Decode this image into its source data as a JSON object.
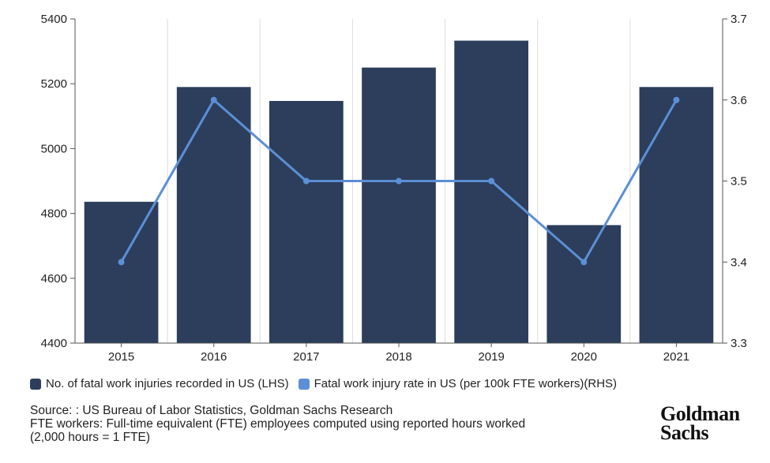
{
  "chart_data": {
    "type": "bar+line",
    "categories": [
      "2015",
      "2016",
      "2017",
      "2018",
      "2019",
      "2020",
      "2021"
    ],
    "series": [
      {
        "name": "No. of fatal work injuries recorded in US (LHS)",
        "type": "bar",
        "axis": "left",
        "color": "#2c3e5c",
        "values": [
          4836,
          5190,
          5147,
          5250,
          5333,
          4764,
          5190
        ]
      },
      {
        "name": "Fatal work injury rate in US (per 100k FTE workers)(RHS)",
        "type": "line",
        "axis": "right",
        "color": "#5b8fd6",
        "values": [
          3.4,
          3.6,
          3.5,
          3.5,
          3.5,
          3.4,
          3.6
        ]
      }
    ],
    "y_left": {
      "range": [
        4400,
        5400
      ],
      "ticks": [
        "4400",
        "4600",
        "4800",
        "5000",
        "5200",
        "5400"
      ]
    },
    "y_right": {
      "range": [
        3.3,
        3.7
      ],
      "ticks": [
        "3.3",
        "3.4",
        "3.5",
        "3.6",
        "3.7"
      ]
    },
    "grid": "vertical",
    "legend_position": "bottom-left"
  },
  "notes": {
    "source": "Source: : US Bureau of Labor Statistics, Goldman Sachs Research",
    "fte_line1": "FTE workers: Full-time equivalent (FTE) employees computed using reported hours worked",
    "fte_line2": "(2,000 hours = 1 FTE)"
  },
  "logo": {
    "line1": "Goldman",
    "line2": "Sachs"
  }
}
